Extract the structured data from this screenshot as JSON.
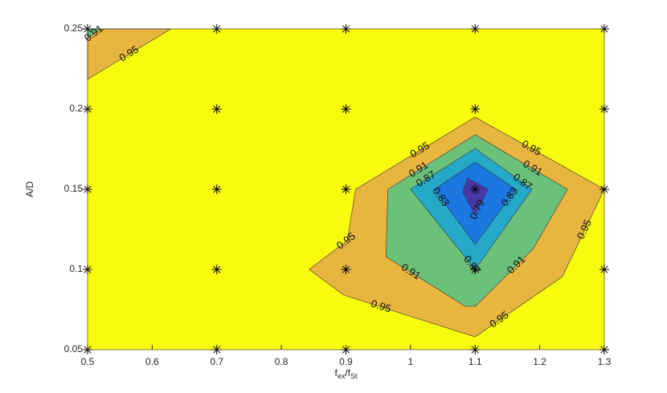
{
  "chart_data": {
    "type": "contour",
    "xlabel": [
      "f",
      "ex",
      "/f",
      "St"
    ],
    "ylabel": "A/D",
    "xlim": [
      0.5,
      1.3
    ],
    "ylim": [
      0.05,
      0.25
    ],
    "xticks": [
      0.5,
      0.6,
      0.7,
      0.8,
      0.9,
      1,
      1.1,
      1.2,
      1.3
    ],
    "yticks": [
      0.05,
      0.1,
      0.15,
      0.2,
      0.25
    ],
    "background_color": "#f9fb0e",
    "sample_x": [
      0.5,
      0.7,
      0.9,
      1.1,
      1.3
    ],
    "sample_y": [
      0.05,
      0.1,
      0.15,
      0.2,
      0.25
    ],
    "contours": [
      {
        "level": 0.95,
        "color": "#e8b53f",
        "x": [
          1.1,
          0.915,
          0.902,
          0.843,
          0.897,
          1.1,
          1.235,
          1.3
        ],
        "y": [
          0.195,
          0.15,
          0.118,
          0.1,
          0.084,
          0.058,
          0.0955,
          0.15
        ]
      },
      {
        "level": 0.95,
        "color": "#e8b53f",
        "x": [
          0.5,
          0.629,
          0.5
        ],
        "y": [
          0.25,
          0.25,
          0.2185
        ]
      },
      {
        "level": 0.91,
        "color": "#6cc17a",
        "x": [
          1.1,
          0.965,
          0.962,
          1.085,
          1.1,
          1.19,
          1.243
        ],
        "y": [
          0.184,
          0.15,
          0.108,
          0.077,
          0.077,
          0.113,
          0.15
        ]
      },
      {
        "level": 0.91,
        "color": "#6cc17a",
        "x": [
          0.5,
          0.52,
          0.5
        ],
        "y": [
          0.25,
          0.25,
          0.244
        ]
      },
      {
        "level": 0.87,
        "color": "#24aac8",
        "x": [
          1.1,
          1.0,
          1.1,
          1.188
        ],
        "y": [
          0.1755,
          0.15,
          0.1,
          0.15
        ]
      },
      {
        "level": 0.83,
        "color": "#1a78e0",
        "x": [
          1.1,
          1.037,
          1.1,
          1.163
        ],
        "y": [
          0.167,
          0.15,
          0.1155,
          0.15
        ]
      },
      {
        "level": 0.79,
        "color": "#4a36a6",
        "x": [
          1.088,
          1.12,
          1.1,
          1.081
        ],
        "y": [
          0.157,
          0.15,
          0.134,
          0.148
        ]
      }
    ]
  }
}
